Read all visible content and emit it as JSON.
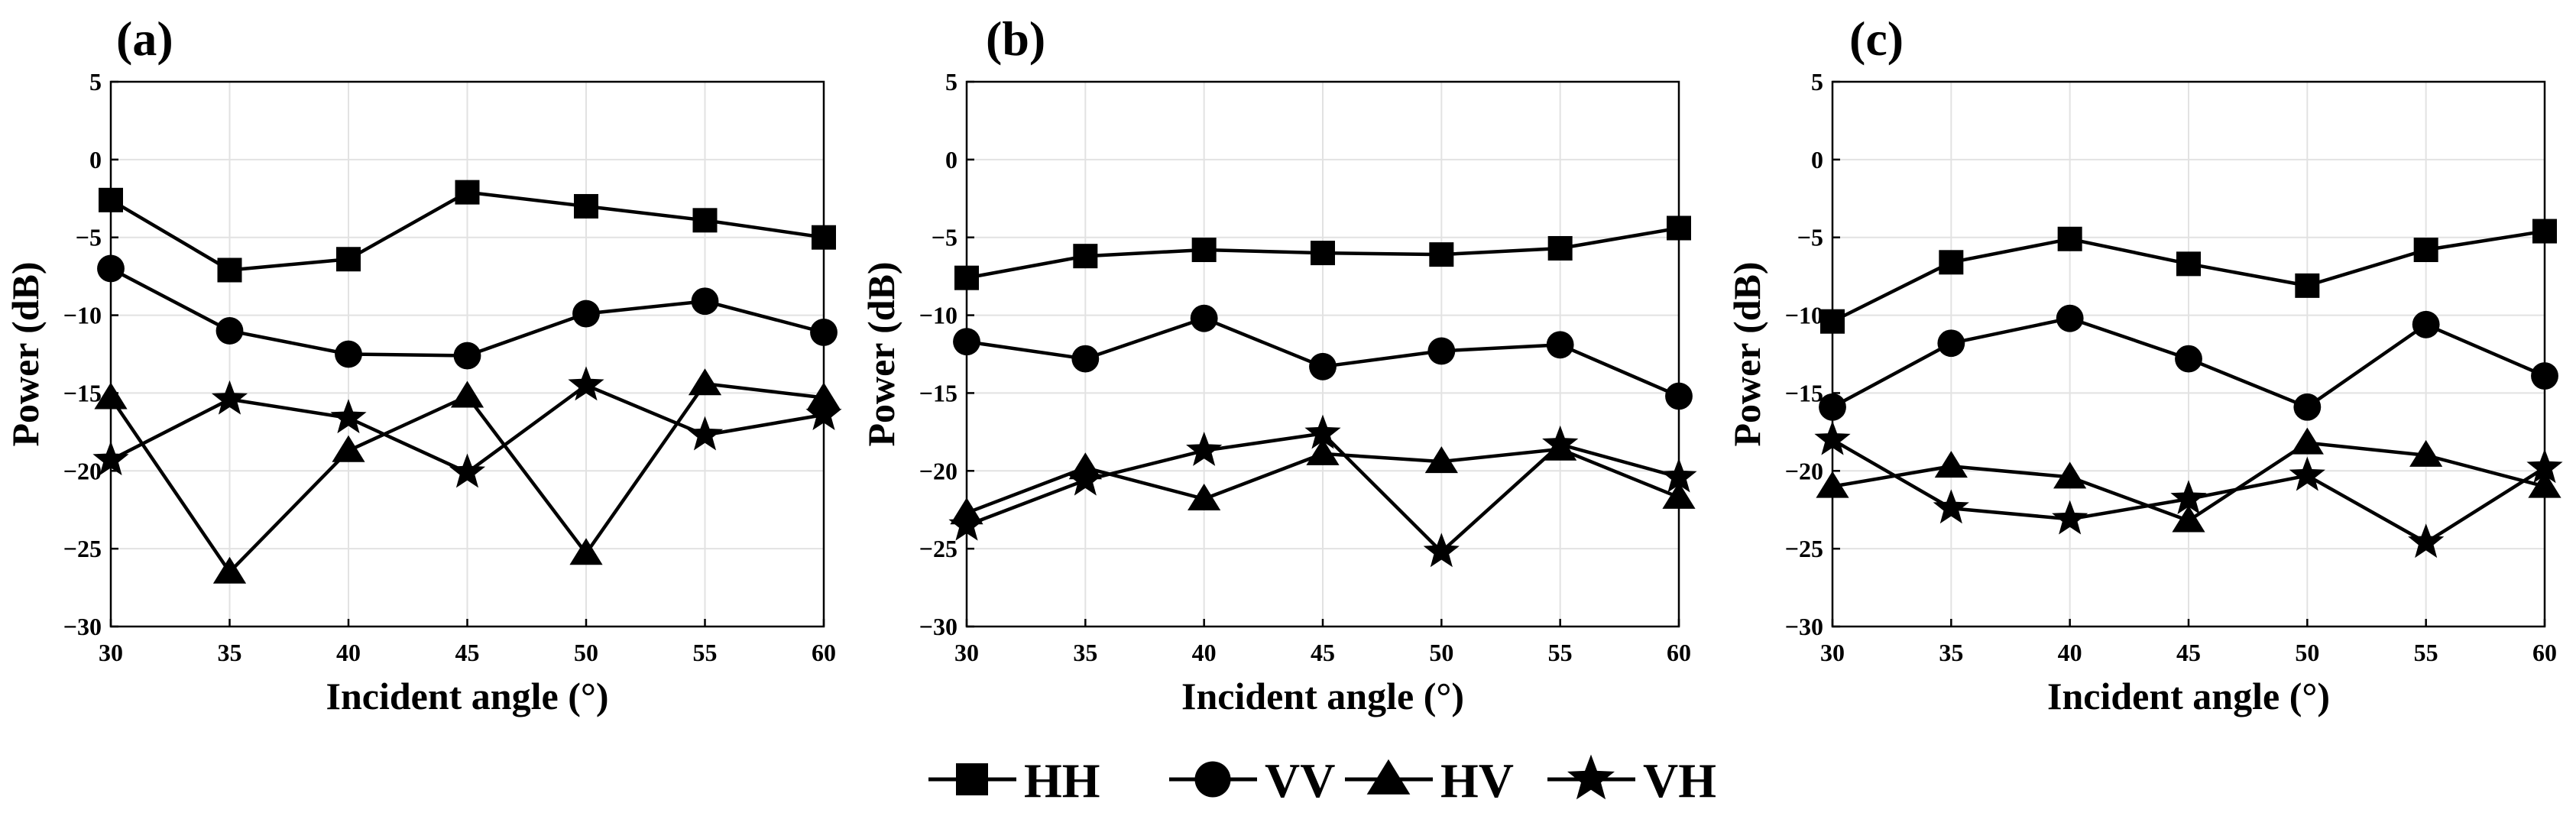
{
  "figure": {
    "legend": [
      {
        "label": "HH",
        "marker": "square"
      },
      {
        "label": "VV",
        "marker": "circle"
      },
      {
        "label": "HV",
        "marker": "triangle"
      },
      {
        "label": "VH",
        "marker": "star"
      }
    ]
  },
  "chart_data": [
    {
      "type": "line",
      "panel_label": "(a)",
      "xlabel": "Incident angle (°)",
      "ylabel": "Power (dB)",
      "x": [
        30,
        35,
        40,
        45,
        50,
        55,
        60
      ],
      "xlim": [
        30,
        60
      ],
      "ylim": [
        -30,
        5
      ],
      "xticks": [
        "30",
        "35",
        "40",
        "45",
        "50",
        "55",
        "60"
      ],
      "yticks": [
        "5",
        "0",
        "−5",
        "−10",
        "−15",
        "−20",
        "−25",
        "−30"
      ],
      "grid": true,
      "series": [
        {
          "name": "HH",
          "values": [
            -2.6,
            -7.1,
            -6.4,
            -2.1,
            -3.0,
            -3.9,
            -5.0
          ]
        },
        {
          "name": "VV",
          "values": [
            -7.0,
            -11.0,
            -12.5,
            -12.6,
            -9.9,
            -9.1,
            -11.1
          ]
        },
        {
          "name": "HV",
          "values": [
            -15.3,
            -26.5,
            -18.7,
            -15.2,
            -25.3,
            -14.4,
            -15.3
          ]
        },
        {
          "name": "VH",
          "values": [
            -19.3,
            -15.4,
            -16.6,
            -20.1,
            -14.5,
            -17.7,
            -16.4
          ]
        }
      ]
    },
    {
      "type": "line",
      "panel_label": "(b)",
      "xlabel": "Incident angle (°)",
      "ylabel": "Power (dB)",
      "x": [
        30,
        35,
        40,
        45,
        50,
        55,
        60
      ],
      "xlim": [
        30,
        60
      ],
      "ylim": [
        -30,
        5
      ],
      "xticks": [
        "30",
        "35",
        "40",
        "45",
        "50",
        "55",
        "60"
      ],
      "yticks": [
        "5",
        "0",
        "−5",
        "−10",
        "−15",
        "−20",
        "−25",
        "−30"
      ],
      "grid": true,
      "series": [
        {
          "name": "HH",
          "values": [
            -7.6,
            -6.2,
            -5.8,
            -6.0,
            -6.1,
            -5.7,
            -4.4
          ]
        },
        {
          "name": "VV",
          "values": [
            -11.7,
            -12.8,
            -10.2,
            -13.3,
            -12.3,
            -11.9,
            -15.2
          ]
        },
        {
          "name": "HV",
          "values": [
            -22.7,
            -19.8,
            -21.8,
            -18.9,
            -19.4,
            -18.6,
            -21.7
          ]
        },
        {
          "name": "VH",
          "values": [
            -23.5,
            -20.6,
            -18.7,
            -17.6,
            -25.2,
            -18.3,
            -20.4
          ]
        }
      ]
    },
    {
      "type": "line",
      "panel_label": "(c)",
      "xlabel": "Incident angle (°)",
      "ylabel": "Power (dB)",
      "x": [
        30,
        35,
        40,
        45,
        50,
        55,
        60
      ],
      "xlim": [
        30,
        60
      ],
      "ylim": [
        -30,
        5
      ],
      "xticks": [
        "30",
        "35",
        "40",
        "45",
        "50",
        "55",
        "60"
      ],
      "yticks": [
        "5",
        "0",
        "−5",
        "−10",
        "−15",
        "−20",
        "−25",
        "−30"
      ],
      "grid": true,
      "series": [
        {
          "name": "HH",
          "values": [
            -10.4,
            -6.6,
            -5.1,
            -6.7,
            -8.1,
            -5.8,
            -4.6
          ]
        },
        {
          "name": "VV",
          "values": [
            -15.9,
            -11.8,
            -10.2,
            -12.8,
            -15.9,
            -10.6,
            -13.9
          ]
        },
        {
          "name": "HV",
          "values": [
            -21.0,
            -19.7,
            -20.4,
            -23.2,
            -18.2,
            -19.0,
            -21.0
          ]
        },
        {
          "name": "VH",
          "values": [
            -18.0,
            -22.4,
            -23.1,
            -21.8,
            -20.3,
            -24.6,
            -19.8
          ]
        }
      ]
    }
  ]
}
